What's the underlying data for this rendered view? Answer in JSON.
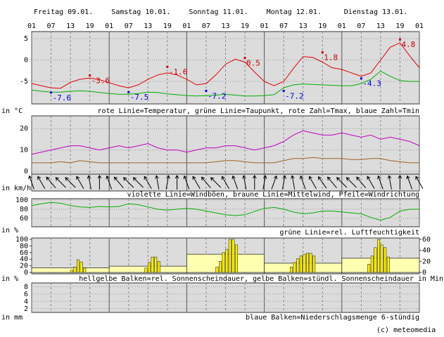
{
  "days": [
    "Freitag 09.01.",
    "Samstag 10.01.",
    "Sonntag 11.01.",
    "Montag 12.01.",
    "Dienstag 13.01."
  ],
  "x_axis": {
    "xlim": [
      0,
      120
    ],
    "xticks": [
      {
        "value": 0,
        "label": "01"
      },
      {
        "value": 6,
        "label": "07"
      },
      {
        "value": 12,
        "label": "13"
      },
      {
        "value": 18,
        "label": "19"
      },
      {
        "value": 24,
        "label": "01"
      },
      {
        "value": 30,
        "label": "07"
      },
      {
        "value": 36,
        "label": "13"
      },
      {
        "value": 42,
        "label": "19"
      },
      {
        "value": 48,
        "label": "01"
      },
      {
        "value": 54,
        "label": "07"
      },
      {
        "value": 60,
        "label": "13"
      },
      {
        "value": 66,
        "label": "19"
      },
      {
        "value": 72,
        "label": "01"
      },
      {
        "value": 78,
        "label": "07"
      },
      {
        "value": 84,
        "label": "13"
      },
      {
        "value": 90,
        "label": "19"
      },
      {
        "value": 96,
        "label": "01"
      },
      {
        "value": 102,
        "label": "07"
      },
      {
        "value": 108,
        "label": "13"
      },
      {
        "value": 114,
        "label": "19"
      },
      {
        "value": 120,
        "label": "01"
      }
    ]
  },
  "chart_data": [
    {
      "type": "line",
      "unit": "in °C",
      "caption": "rote Linie=Temperatur, grüne Linie=Taupunkt, rote Zahl=Tmax, blaue Zahl=Tmin",
      "ylim": [
        -10.25,
        6.64
      ],
      "yticks": [
        -5,
        0,
        5
      ],
      "grid": true,
      "x": [
        0,
        3,
        6,
        9,
        12,
        15,
        18,
        21,
        24,
        27,
        30,
        33,
        36,
        39,
        42,
        45,
        48,
        51,
        54,
        57,
        60,
        63,
        66,
        69,
        72,
        75,
        78,
        81,
        84,
        87,
        90,
        93,
        96,
        99,
        102,
        105,
        108,
        111,
        114,
        117,
        120
      ],
      "series": [
        {
          "color": "#e00000",
          "values": [
            -5.5,
            -6.0,
            -6.5,
            -6.6,
            -5.2,
            -4.5,
            -4.2,
            -4.6,
            -5.3,
            -6.0,
            -6.5,
            -5.8,
            -4.5,
            -3.5,
            -3.0,
            -3.5,
            -4.5,
            -5.8,
            -5.5,
            -3.5,
            -1.0,
            0.2,
            -0.5,
            -2.8,
            -5.0,
            -6.0,
            -5.0,
            -2.0,
            0.8,
            0.6,
            -0.5,
            -1.8,
            -2.2,
            -3.0,
            -3.8,
            -3.0,
            0.0,
            3.0,
            4.0,
            1.0,
            -1.8
          ]
        },
        {
          "color": "#00b000",
          "values": [
            -7.0,
            -7.3,
            -7.5,
            -7.5,
            -7.3,
            -7.2,
            -7.3,
            -7.6,
            -7.8,
            -8.0,
            -8.0,
            -7.8,
            -7.5,
            -7.6,
            -7.9,
            -8.1,
            -8.3,
            -8.4,
            -8.3,
            -8.2,
            -8.0,
            -8.2,
            -8.4,
            -8.4,
            -8.3,
            -8.1,
            -6.5,
            -5.8,
            -5.6,
            -5.7,
            -5.8,
            -5.9,
            -6.0,
            -6.0,
            -5.5,
            -4.5,
            -2.6,
            -3.8,
            -4.8,
            -5.0,
            -5.0
          ]
        }
      ],
      "tmax": {
        "color": "#cc0000",
        "x": [
          18,
          42,
          66,
          90,
          114
        ],
        "values": [
          -3.6,
          -1.6,
          0.5,
          1.8,
          4.8
        ]
      },
      "tmin": {
        "color": "#0000e0",
        "x": [
          6,
          30,
          54,
          78,
          102
        ],
        "values": [
          -7.6,
          -7.5,
          -7.2,
          -7.2,
          -4.3
        ]
      }
    },
    {
      "type": "line",
      "unit": "in km/h",
      "caption": "violette Linie=Windböen, braune Linie=Mittelwind, Pfeile=Windrichtung",
      "ylim": [
        -1.3,
        26
      ],
      "yticks": [
        0,
        10,
        20
      ],
      "grid": true,
      "x": [
        0,
        3,
        6,
        9,
        12,
        15,
        18,
        21,
        24,
        27,
        30,
        33,
        36,
        39,
        42,
        45,
        48,
        51,
        54,
        57,
        60,
        63,
        66,
        69,
        72,
        75,
        78,
        81,
        84,
        87,
        90,
        93,
        96,
        99,
        102,
        105,
        108,
        111,
        114,
        117,
        120
      ],
      "series": [
        {
          "color": "#c000c0",
          "values": [
            8,
            9,
            10,
            11,
            12,
            12,
            11,
            10,
            11,
            12,
            11,
            12,
            13,
            11,
            10,
            10,
            9,
            10,
            11,
            11,
            12,
            12,
            11,
            10,
            11,
            12,
            14,
            17,
            19,
            18,
            17,
            17,
            18,
            17,
            16,
            17,
            15,
            16,
            15,
            14,
            12
          ]
        },
        {
          "color": "#a06020",
          "values": [
            4,
            4,
            4,
            4.5,
            4,
            5,
            4.5,
            4,
            4,
            4,
            4,
            4,
            4,
            4,
            4,
            4,
            4,
            4,
            4,
            4.5,
            5,
            5,
            4.5,
            4,
            4,
            4,
            5,
            6,
            6,
            6.5,
            6,
            6,
            6,
            5.5,
            5.5,
            6,
            6,
            5,
            4.5,
            4,
            4
          ]
        }
      ]
    },
    {
      "type": "arrows",
      "x": [
        0,
        3,
        6,
        9,
        12,
        15,
        18,
        21,
        24,
        27,
        30,
        33,
        36,
        39,
        42,
        45,
        48,
        51,
        54,
        57,
        60,
        63,
        66,
        69,
        72,
        75,
        78,
        81,
        84,
        87,
        90,
        93,
        96,
        99,
        102,
        105,
        108,
        111,
        114,
        117,
        120
      ],
      "values": [
        160,
        150,
        140,
        135,
        135,
        150,
        170,
        180,
        160,
        140,
        135,
        135,
        150,
        170,
        190,
        180,
        160,
        150,
        140,
        135,
        150,
        160,
        170,
        180,
        190,
        200,
        190,
        170,
        160,
        150,
        145,
        140,
        135,
        135,
        140,
        150,
        160,
        170,
        180,
        160,
        150
      ]
    },
    {
      "type": "line",
      "unit": "in %",
      "caption": "grüne Linie=rel. Luftfeuchtigkeit",
      "ylim": [
        41.5,
        103
      ],
      "yticks": [
        60,
        80,
        100
      ],
      "grid": true,
      "x": [
        0,
        3,
        6,
        9,
        12,
        15,
        18,
        21,
        24,
        27,
        30,
        33,
        36,
        39,
        42,
        45,
        48,
        51,
        54,
        57,
        60,
        63,
        66,
        69,
        72,
        75,
        78,
        81,
        84,
        87,
        90,
        93,
        96,
        99,
        102,
        105,
        108,
        111,
        114,
        117,
        120
      ],
      "series": [
        {
          "color": "#00b000",
          "values": [
            88,
            92,
            95,
            93,
            88,
            85,
            84,
            86,
            85,
            86,
            92,
            90,
            85,
            80,
            78,
            80,
            82,
            80,
            76,
            72,
            68,
            66,
            68,
            75,
            82,
            84,
            80,
            74,
            70,
            72,
            76,
            76,
            74,
            72,
            70,
            62,
            56,
            62,
            76,
            80,
            80
          ]
        }
      ]
    },
    {
      "type": "bar",
      "unit": "in %",
      "caption": "hellgelbe Balken=rel. Sonnenscheindauer, gelbe Balken=stündl. Sonnenscheindauer  in Min",
      "ylim": [
        -4,
        104
      ],
      "yticks": [
        0,
        20,
        40,
        60,
        80,
        100
      ],
      "y2lim": [
        -2.5,
        62.5
      ],
      "y2ticks": [
        0,
        20,
        40,
        60
      ],
      "grid": false,
      "daily": {
        "color": "#ffffb0",
        "bins": [
          0,
          24,
          48,
          72,
          96,
          120
        ],
        "values": [
          14,
          19,
          55,
          28,
          43
        ]
      },
      "hourly": {
        "color": "#ffee00",
        "axis": "y2",
        "x": [
          12,
          13,
          14,
          15,
          16,
          35,
          36,
          37,
          38,
          39,
          57,
          58,
          59,
          60,
          61,
          62,
          63,
          80,
          81,
          82,
          83,
          84,
          85,
          86,
          87,
          104,
          105,
          106,
          107,
          108,
          109,
          110
        ],
        "values": [
          4,
          10,
          23,
          19,
          8,
          8,
          18,
          28,
          28,
          20,
          10,
          20,
          36,
          42,
          60,
          60,
          50,
          10,
          18,
          25,
          30,
          33,
          35,
          35,
          30,
          15,
          30,
          45,
          60,
          50,
          45,
          28
        ]
      }
    },
    {
      "type": "bar",
      "unit": "in mm",
      "caption": "blaue Balken=Niederschlagsmenge 6-stündig",
      "ylim": [
        1,
        9
      ],
      "yticks": [
        2,
        4,
        6,
        8
      ],
      "grid": true
    }
  ],
  "credit": "(c) meteomedia"
}
